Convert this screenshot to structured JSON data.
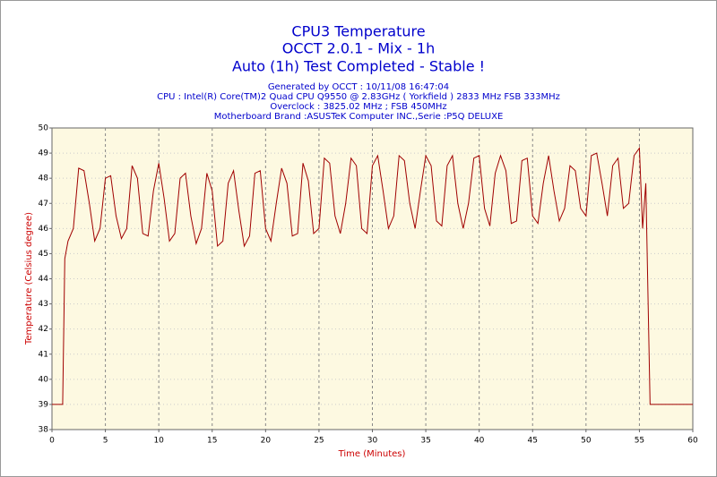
{
  "chart_data": {
    "type": "line",
    "title": "CPU3 Temperature",
    "subtitle": "OCCT 2.0.1 - Mix - 1h",
    "status": "Auto (1h) Test Completed - Stable !",
    "info": [
      "Generated by OCCT : 10/11/08 16:47:04",
      "CPU : Intel(R) Core(TM)2 Quad CPU Q9550 @ 2.83GHz ( Yorkfield ) 2833 MHz FSB 333MHz",
      "Overclock : 3825.02 MHz ; FSB 450MHz",
      "Motherboard Brand :ASUSTeK Computer INC.,Serie :P5Q DELUXE"
    ],
    "x_label": "Time (Minutes)",
    "y_label": "Temperature (Celsius degree)",
    "x": [
      0,
      0.5,
      1,
      1.2,
      1.5,
      2,
      2.5,
      3,
      3.5,
      4,
      4.5,
      5,
      5.5,
      6,
      6.5,
      7,
      7.5,
      8,
      8.5,
      9,
      9.5,
      10,
      10.5,
      11,
      11.5,
      12,
      12.5,
      13,
      13.5,
      14,
      14.5,
      15,
      15.5,
      16,
      16.5,
      17,
      17.5,
      18,
      18.5,
      19,
      19.5,
      20,
      20.5,
      21,
      21.5,
      22,
      22.5,
      23,
      23.5,
      24,
      24.5,
      25,
      25.5,
      26,
      26.5,
      27,
      27.5,
      28,
      28.5,
      29,
      29.5,
      30,
      30.5,
      31,
      31.5,
      32,
      32.5,
      33,
      33.5,
      34,
      34.5,
      35,
      35.5,
      36,
      36.5,
      37,
      37.5,
      38,
      38.5,
      39,
      39.5,
      40,
      40.5,
      41,
      41.5,
      42,
      42.5,
      43,
      43.5,
      44,
      44.5,
      45,
      45.5,
      46,
      46.5,
      47,
      47.5,
      48,
      48.5,
      49,
      49.5,
      50,
      50.5,
      51,
      51.5,
      52,
      52.5,
      53,
      53.5,
      54,
      54.5,
      55,
      55.3,
      55.6,
      56,
      60
    ],
    "series": [
      {
        "name": "CPU3",
        "color": "#a00000",
        "values": [
          39,
          39,
          39,
          44.8,
          45.5,
          46,
          48.4,
          48.3,
          47,
          45.5,
          46,
          48,
          48.1,
          46.5,
          45.6,
          46,
          48.5,
          48,
          45.8,
          45.7,
          47.5,
          48.6,
          47.2,
          45.5,
          45.8,
          48,
          48.2,
          46.5,
          45.4,
          46,
          48.2,
          47.5,
          45.3,
          45.5,
          47.8,
          48.3,
          46.7,
          45.3,
          45.7,
          48.2,
          48.3,
          46,
          45.5,
          47,
          48.4,
          47.8,
          45.7,
          45.8,
          48.6,
          47.9,
          45.8,
          46,
          48.8,
          48.6,
          46.5,
          45.8,
          47,
          48.8,
          48.5,
          46,
          45.8,
          48.5,
          48.9,
          47.5,
          46,
          46.5,
          48.9,
          48.7,
          47,
          46,
          47.5,
          48.9,
          48.5,
          46.3,
          46.1,
          48.5,
          48.9,
          47,
          46,
          47,
          48.8,
          48.9,
          46.8,
          46.1,
          48.2,
          48.9,
          48.3,
          46.2,
          46.3,
          48.7,
          48.8,
          46.5,
          46.2,
          47.8,
          48.9,
          47.5,
          46.3,
          46.8,
          48.5,
          48.3,
          46.8,
          46.5,
          48.9,
          49,
          47.8,
          46.5,
          48.5,
          48.8,
          46.8,
          47,
          48.9,
          49.2,
          46,
          47.8,
          39,
          39
        ]
      }
    ],
    "xlim": [
      0,
      60
    ],
    "xticks": [
      0,
      5,
      10,
      15,
      20,
      25,
      30,
      35,
      40,
      45,
      50,
      55,
      60
    ],
    "ylim": [
      38,
      50
    ],
    "yticks": [
      38,
      39,
      40,
      41,
      42,
      43,
      44,
      45,
      46,
      47,
      48,
      49,
      50
    ],
    "grid": true
  }
}
